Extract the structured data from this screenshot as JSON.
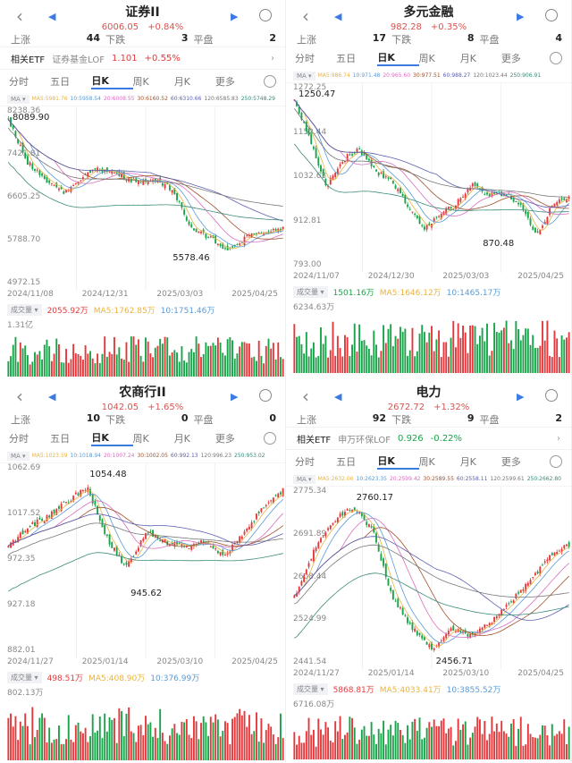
{
  "colors": {
    "up": "#e4393c",
    "down": "#1aa34a",
    "ma5": "#e8b440",
    "ma10": "#5b9bd5",
    "ma20": "#d86fc0",
    "ma30": "#a0522d",
    "ma60": "#5a5fb0",
    "ma120": "#777777",
    "ma250": "#3a8a7a"
  },
  "common": {
    "stat_up": "上涨",
    "stat_down": "下跌",
    "stat_flat": "平盘",
    "etf_label": "相关ETF",
    "tabs": [
      "分时",
      "五日",
      "日K",
      "周K",
      "月K",
      "更多"
    ],
    "ma_tag": "MA ▾",
    "vol_tag": "成交量 ▾"
  },
  "panels": [
    {
      "title": "证券II",
      "price": "6006.05",
      "change": "+0.84%",
      "up": "44",
      "down": "3",
      "flat": "2",
      "etf": {
        "name": "证券基金LOF",
        "price": "1.101",
        "change": "+0.55%"
      },
      "ma": [
        "MA5:5981.76",
        "10:5958.54",
        "20:6008.55",
        "30:6160.52",
        "60:6310.66",
        "120:6585.83",
        "250:5748.29"
      ],
      "vol": {
        "value": "2055.92万",
        "ma5": "MA5:1762.85万",
        "ma10": "10:1751.46万",
        "max": "1.31亿"
      }
    },
    {
      "title": "多元金融",
      "price": "982.28",
      "change": "+0.35%",
      "up": "17",
      "down": "8",
      "flat": "4",
      "ma": [
        "MA5:986.74",
        "10:971.48",
        "20:965.60",
        "30:977.51",
        "60:988.27",
        "120:1023.44",
        "250:906.91"
      ],
      "vol": {
        "value": "1501.16万",
        "ma5": "MA5:1646.12万",
        "ma10": "10:1465.17万",
        "max": "6234.63万"
      }
    },
    {
      "title": "农商行II",
      "price": "1042.05",
      "change": "+1.65%",
      "up": "10",
      "down": "0",
      "flat": "0",
      "ma": [
        "MA5:1023.59",
        "10:1018.94",
        "20:1007.24",
        "30:1002.05",
        "60:992.13",
        "120:996.23",
        "250:953.02"
      ],
      "vol": {
        "value": "498.51万",
        "ma5": "MA5:408.90万",
        "ma10": "10:376.99万",
        "max": "802.13万"
      }
    },
    {
      "title": "电力",
      "price": "2672.72",
      "change": "+1.32%",
      "up": "92",
      "down": "9",
      "flat": "2",
      "etf": {
        "name": "申万环保LOF",
        "price": "0.926",
        "change": "-0.22%"
      },
      "ma": [
        "MA5:2632.06",
        "10:2623.35",
        "20:2599.42",
        "30:2589.55",
        "60:2558.11",
        "120:2599.61",
        "250:2662.80"
      ],
      "vol": {
        "value": "5868.81万",
        "ma5": "MA5:4033.41万",
        "ma10": "10:3855.52万",
        "max": "6716.08万"
      }
    }
  ],
  "chart_data": [
    {
      "type": "candlestick",
      "title": "证券II",
      "yticks": [
        "8238.36",
        "7421.81",
        "6605.25",
        "5788.70",
        "4972.15"
      ],
      "ylim": [
        4972.15,
        8238.36
      ],
      "dates": [
        "2024/11/08",
        "2024/12/31",
        "2025/03/03",
        "2025/04/25"
      ],
      "high_label": "8089.90",
      "low_label": "5578.46",
      "high": 8089.9,
      "low": 5578.46,
      "path": [
        8089,
        7300,
        6950,
        6700,
        7000,
        7150,
        7050,
        6900,
        6950,
        6750,
        6000,
        5850,
        5600,
        5850,
        5950,
        6006
      ]
    },
    {
      "type": "candlestick",
      "title": "多元金融",
      "yticks": [
        "1272.25",
        "1152.44",
        "1032.63",
        "912.81",
        "793.00"
      ],
      "ylim": [
        793,
        1272.25
      ],
      "dates": [
        "2024/11/07",
        "2024/12/30",
        "2025/03/03",
        "2025/04/25"
      ],
      "high_label": "1250.47",
      "low_label": "870.48",
      "high": 1250.47,
      "low": 870.48,
      "path": [
        1240,
        1130,
        1010,
        1080,
        1110,
        1050,
        1020,
        960,
        890,
        930,
        960,
        1010,
        985,
        990,
        960,
        875,
        960,
        982
      ]
    },
    {
      "type": "candlestick",
      "title": "农商行II",
      "yticks": [
        "1062.69",
        "1017.52",
        "972.35",
        "927.18",
        "882.01"
      ],
      "ylim": [
        882.01,
        1062.69
      ],
      "dates": [
        "2024/11/27",
        "2025/01/14",
        "2025/03/10",
        "2025/04/25"
      ],
      "high_label": "1054.48",
      "low_label": "945.62",
      "high": 1054.48,
      "low": 945.62,
      "path": [
        985,
        1005,
        1015,
        1030,
        1045,
        995,
        965,
        1000,
        990,
        985,
        990,
        975,
        1000,
        1025,
        1042
      ]
    },
    {
      "type": "candlestick",
      "title": "电力",
      "yticks": [
        "2775.34",
        "2691.89",
        "2608.44",
        "2524.99",
        "2441.54"
      ],
      "ylim": [
        2441.54,
        2775.34
      ],
      "dates": [
        "2024/11/27",
        "2025/01/14",
        "2025/03/10",
        "2025/04/25"
      ],
      "high_label": "2760.17",
      "low_label": "2456.71",
      "high": 2760.17,
      "low": 2456.71,
      "path": [
        2570,
        2660,
        2720,
        2745,
        2700,
        2570,
        2510,
        2470,
        2510,
        2495,
        2520,
        2560,
        2600,
        2650,
        2672
      ]
    }
  ]
}
